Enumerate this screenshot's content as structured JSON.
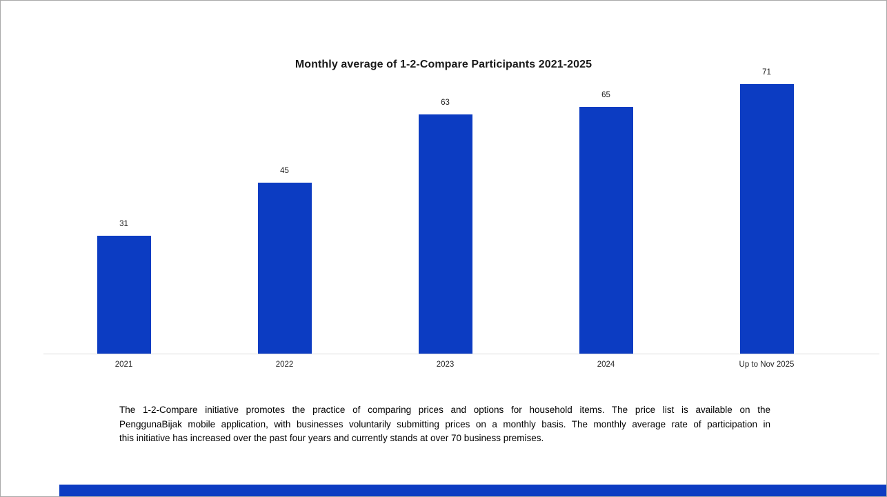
{
  "window": {
    "background": "#ffffff",
    "border_color": "#a9a9a9"
  },
  "chart_data": {
    "type": "bar",
    "title": "Monthly average of 1-2-Compare Participants 2021-2025",
    "categories": [
      "2021",
      "2022",
      "2023",
      "2024",
      "Up to Nov 2025"
    ],
    "values": [
      31,
      45,
      63,
      65,
      71
    ],
    "data_labels_shown": true,
    "bar_color": "#0c3cc2",
    "axis_line_color": "#d9d9d9",
    "text_color": "#1a1a1a",
    "xlabel": "",
    "ylabel": "",
    "ylim": [
      0,
      72
    ],
    "grid": false,
    "legend": false
  },
  "caption": {
    "lines": [
      "The 1-2-Compare initiative promotes the practice of comparing prices and options for household items. The price list is available on the",
      "PenggunaBijak mobile application, with businesses voluntarily submitting prices on a monthly basis. The monthly average rate of participation in",
      "this initiative has increased over the past four years and currently stands at over 70 business premises."
    ]
  },
  "footer": {
    "accent_bar_color": "#0c3cc2"
  }
}
